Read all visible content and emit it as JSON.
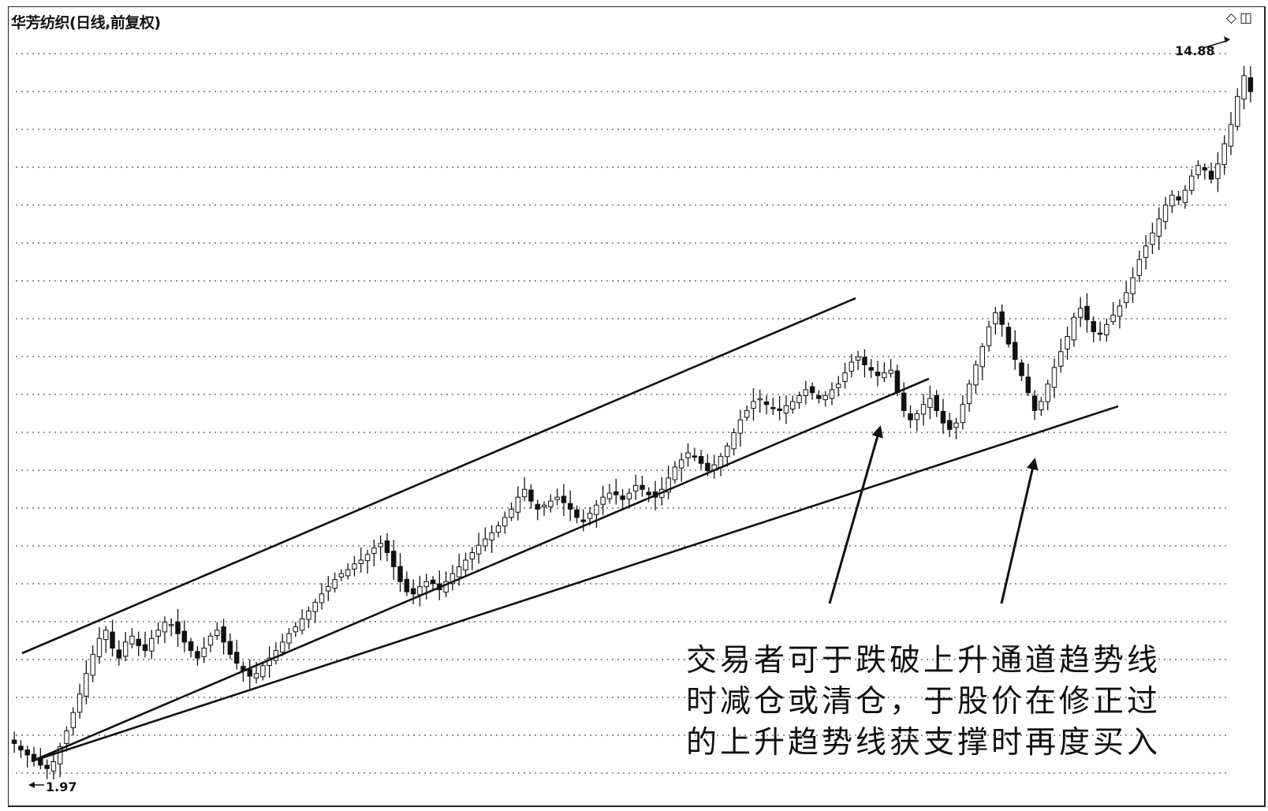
{
  "title": "华芳纺织(日线,前复权)",
  "controls": {
    "diamond_icon": "diamond-icon",
    "window_icon": "window-icon"
  },
  "price_labels": {
    "high": "14.88",
    "low": "1.97"
  },
  "annotation": [
    "交易者可于跌破上升通道趋势线",
    "时减仓或清仓，于股价在修正过",
    "的上升趋势线获支撑时再度买入"
  ],
  "colors": {
    "ink": "#111111",
    "grid": "#555555",
    "background": "#ffffff"
  },
  "chart_data": {
    "type": "candlestick",
    "title": "华芳纺织(日线,前复权)",
    "y_scale": "log",
    "ylim": [
      1.9,
      17.0
    ],
    "grid": "horizontal dotted",
    "price_high": 14.88,
    "price_low": 1.97,
    "series": [
      {
        "values": [
          2.12,
          2.08,
          2.05,
          2.02,
          1.99,
          1.97,
          2.01,
          2.1,
          2.2,
          2.32,
          2.45,
          2.6,
          2.75,
          2.88,
          2.95,
          2.8,
          2.72,
          2.85,
          2.9,
          2.82,
          2.78,
          2.88,
          2.95,
          3.02,
          3.0,
          2.92,
          2.85,
          2.78,
          2.72,
          2.8,
          2.9,
          2.95,
          2.85,
          2.75,
          2.68,
          2.62,
          2.58,
          2.6,
          2.66,
          2.72,
          2.78,
          2.85,
          2.92,
          2.98,
          3.05,
          3.12,
          3.2,
          3.28,
          3.35,
          3.42,
          3.48,
          3.52,
          3.58,
          3.62,
          3.68,
          3.75,
          3.8,
          3.7,
          3.55,
          3.4,
          3.3,
          3.28,
          3.35,
          3.4,
          3.38,
          3.32,
          3.4,
          3.48,
          3.55,
          3.62,
          3.7,
          3.78,
          3.85,
          3.92,
          4.0,
          4.1,
          4.2,
          4.35,
          4.45,
          4.3,
          4.2,
          4.25,
          4.3,
          4.35,
          4.28,
          4.2,
          4.1,
          4.05,
          4.15,
          4.25,
          4.35,
          4.4,
          4.38,
          4.32,
          4.4,
          4.5,
          4.45,
          4.38,
          4.35,
          4.45,
          4.6,
          4.75,
          4.85,
          4.95,
          4.9,
          4.8,
          4.7,
          4.78,
          4.9,
          5.05,
          5.25,
          5.45,
          5.6,
          5.75,
          5.8,
          5.7,
          5.65,
          5.6,
          5.68,
          5.75,
          5.85,
          5.95,
          5.9,
          5.8,
          5.85,
          5.95,
          6.05,
          6.25,
          6.45,
          6.55,
          6.4,
          6.3,
          6.2,
          6.25,
          6.3,
          5.9,
          5.6,
          5.45,
          5.55,
          5.7,
          5.8,
          5.6,
          5.4,
          5.3,
          5.4,
          5.7,
          6.05,
          6.4,
          6.75,
          7.15,
          7.45,
          7.2,
          6.8,
          6.5,
          6.2,
          5.9,
          5.6,
          5.75,
          6.05,
          6.35,
          6.65,
          6.95,
          7.35,
          7.55,
          7.3,
          7.05,
          7.0,
          7.2,
          7.4,
          7.6,
          7.9,
          8.25,
          8.7,
          9.05,
          9.4,
          9.8,
          10.2,
          10.5,
          10.35,
          10.65,
          11.1,
          11.45,
          11.3,
          11.0,
          11.5,
          12.2,
          12.9,
          14.0,
          14.88,
          14.2
        ]
      }
    ],
    "trendlines": [
      {
        "name": "upper-channel"
      },
      {
        "name": "channel-support"
      },
      {
        "name": "corrected-trend-support"
      }
    ],
    "arrows": 2
  }
}
